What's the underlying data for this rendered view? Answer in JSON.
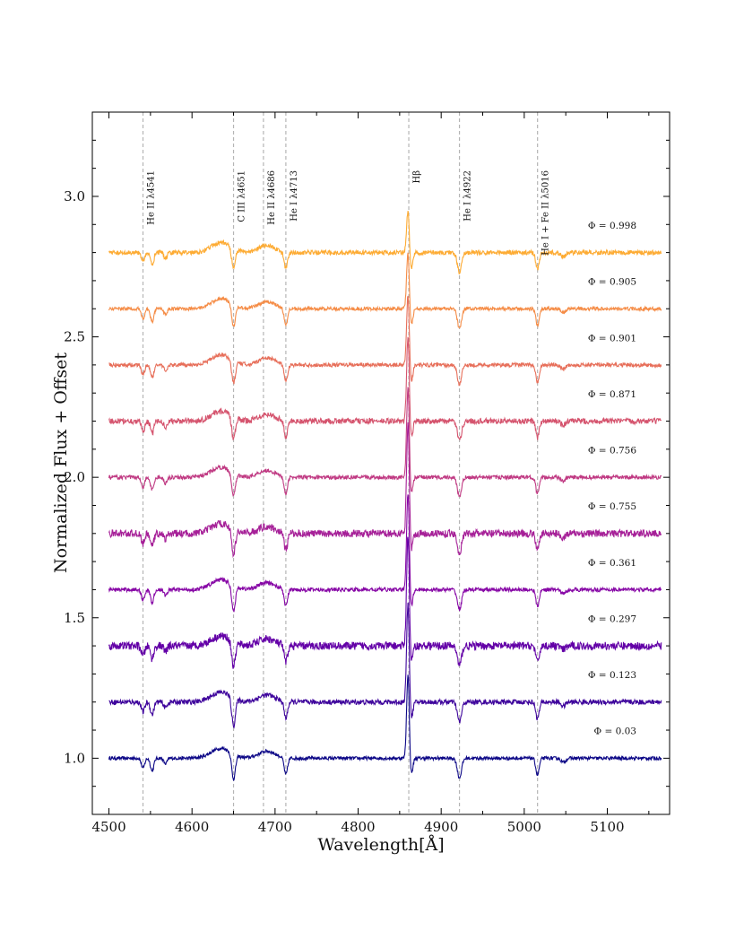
{
  "chart_data": {
    "type": "line",
    "title": "",
    "xlabel": "Wavelength[Å]",
    "ylabel": "Normalized Flux + Offset",
    "xlim": [
      4480,
      5175
    ],
    "ylim": [
      0.8,
      3.3
    ],
    "xticks": [
      4500,
      4600,
      4700,
      4800,
      4900,
      5000,
      5100
    ],
    "xtick_labels": [
      "4500",
      "4600",
      "4700",
      "4800",
      "4900",
      "5000",
      "5100"
    ],
    "yticks": [
      1.0,
      1.5,
      2.0,
      2.5,
      3.0
    ],
    "ytick_labels": [
      "1.0",
      "1.5",
      "2.0",
      "2.5",
      "3.0"
    ],
    "spectral_lines": [
      {
        "wavelength": 4541,
        "label": "He II λ4541"
      },
      {
        "wavelength": 4650,
        "label": "C III λ4651"
      },
      {
        "wavelength": 4686,
        "label": "He II λ4686"
      },
      {
        "wavelength": 4713,
        "label": "He I λ4713"
      },
      {
        "wavelength": 4861,
        "label": "Hβ"
      },
      {
        "wavelength": 4922,
        "label": "He I λ4922"
      },
      {
        "wavelength": 5016,
        "label": "He I + Fe II λ5016"
      }
    ],
    "series": [
      {
        "name": "Φ = 0.03",
        "phase": "0.03",
        "offset": 1.0,
        "color": "#0d0887",
        "noise": 0.006,
        "emission": 0.3,
        "c3": 0.09
      },
      {
        "name": "Φ = 0.123",
        "phase": "0.123",
        "offset": 1.2,
        "color": "#3e049c",
        "noise": 0.009,
        "emission": 0.35,
        "c3": 0.1
      },
      {
        "name": "Φ = 0.297",
        "phase": "0.297",
        "offset": 1.4,
        "color": "#6300a7",
        "noise": 0.014,
        "emission": 0.4,
        "c3": 0.09
      },
      {
        "name": "Φ = 0.361",
        "phase": "0.361",
        "offset": 1.6,
        "color": "#8707a6",
        "noise": 0.007,
        "emission": 0.35,
        "c3": 0.09
      },
      {
        "name": "Φ = 0.755",
        "phase": "0.755",
        "offset": 1.8,
        "color": "#a62098",
        "noise": 0.013,
        "emission": 0.4,
        "c3": 0.09
      },
      {
        "name": "Φ = 0.756",
        "phase": "0.756",
        "offset": 2.0,
        "color": "#c03a83",
        "noise": 0.007,
        "emission": 0.32,
        "c3": 0.08
      },
      {
        "name": "Φ = 0.871",
        "phase": "0.871",
        "offset": 2.2,
        "color": "#d5546e",
        "noise": 0.01,
        "emission": 0.3,
        "c3": 0.08
      },
      {
        "name": "Φ = 0.901",
        "phase": "0.901",
        "offset": 2.4,
        "color": "#e76f5a",
        "noise": 0.007,
        "emission": 0.25,
        "c3": 0.08
      },
      {
        "name": "Φ = 0.905",
        "phase": "0.905",
        "offset": 2.6,
        "color": "#f58c46",
        "noise": 0.006,
        "emission": 0.2,
        "c3": 0.08
      },
      {
        "name": "Φ = 0.998",
        "phase": "0.998",
        "offset": 2.8,
        "color": "#fdab33",
        "noise": 0.008,
        "emission": 0.15,
        "c3": 0.07
      }
    ]
  }
}
